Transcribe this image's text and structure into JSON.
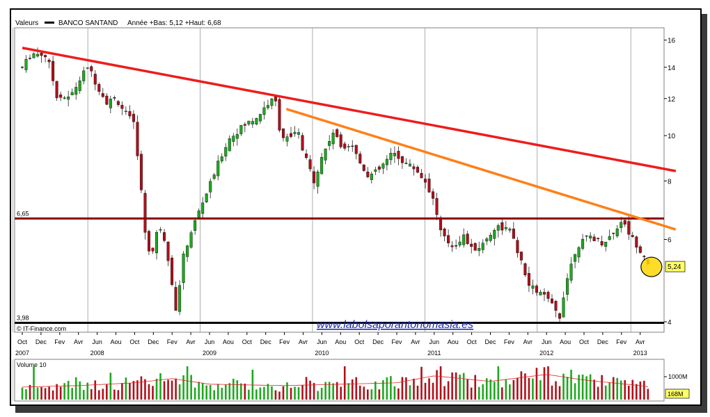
{
  "header": {
    "series_label": "Valeurs",
    "ticker": "BANCO SANTAND",
    "stats": "Année +Bas: 5,12 +Haut: 6,68"
  },
  "credit": "© IT-Finance.com",
  "watermark": "www.labolsaporantonomasia.es",
  "volume_panel": {
    "label": "Volume 10",
    "tick": "1000M",
    "last_value": "168M"
  },
  "colors": {
    "up": "#1fa81f",
    "down": "#b0101a",
    "red_trend": "#ee1c1c",
    "orange_trend": "#ff7f17",
    "resistance": "#8b0000",
    "support": "#000000",
    "highlight": "#ffd700"
  },
  "chart_data": {
    "type": "candlestick",
    "y_scale": "log",
    "ylim": [
      3.8,
      17
    ],
    "y_ticks": [
      4,
      6,
      8,
      10,
      12,
      14,
      16
    ],
    "x_ticks": [
      "Oct",
      "Dec",
      "Fev",
      "Avr",
      "Jun",
      "Aou",
      "Oct",
      "Dec",
      "Fev",
      "Avr",
      "Jun",
      "Aou",
      "Oct",
      "Dec",
      "Fev",
      "Avr",
      "Jun",
      "Aou",
      "Oct",
      "Dec",
      "Fev",
      "Avr",
      "Jun",
      "Aou",
      "Oct",
      "Dec",
      "Fev",
      "Avr",
      "Jun",
      "Aou",
      "Oct",
      "Dec",
      "Fev",
      "Avr"
    ],
    "years": [
      {
        "label": "2007",
        "tick_index": 0
      },
      {
        "label": "2008",
        "tick_index": 4
      },
      {
        "label": "2009",
        "tick_index": 10
      },
      {
        "label": "2010",
        "tick_index": 16
      },
      {
        "label": "2011",
        "tick_index": 22
      },
      {
        "label": "2012",
        "tick_index": 28
      },
      {
        "label": "2013",
        "tick_index": 33
      }
    ],
    "levels": [
      {
        "name": "resistance",
        "value": 6.65,
        "label": "6,65"
      },
      {
        "name": "support",
        "value": 3.98,
        "label": "3,98"
      }
    ],
    "trendlines": [
      {
        "name": "red",
        "from": {
          "t": 0,
          "y": 15.4
        },
        "to": {
          "t": 34.9,
          "y": 8.4
        }
      },
      {
        "name": "orange",
        "from": {
          "t": 14.1,
          "y": 11.4
        },
        "to": {
          "t": 34.9,
          "y": 6.3
        }
      }
    ],
    "last_price": {
      "value": 5.24,
      "label": "5,24"
    },
    "price_path": [
      [
        0,
        14.0
      ],
      [
        0.5,
        15.0
      ],
      [
        1.2,
        14.9
      ],
      [
        1.5,
        14.0
      ],
      [
        1.8,
        12.2
      ],
      [
        2.5,
        12.0
      ],
      [
        3,
        13.0
      ],
      [
        3.5,
        14.1
      ],
      [
        4,
        12.8
      ],
      [
        4.5,
        11.8
      ],
      [
        5,
        12.0
      ],
      [
        5.5,
        11.2
      ],
      [
        6,
        10.5
      ],
      [
        6.3,
        8.0
      ],
      [
        6.6,
        6.0
      ],
      [
        6.9,
        5.5
      ],
      [
        7.3,
        6.5
      ],
      [
        7.6,
        6.0
      ],
      [
        7.9,
        5.2
      ],
      [
        8.2,
        4.2
      ],
      [
        8.6,
        5.5
      ],
      [
        9,
        6.2
      ],
      [
        9.5,
        7.0
      ],
      [
        10,
        7.8
      ],
      [
        10.5,
        8.8
      ],
      [
        11,
        9.8
      ],
      [
        11.8,
        10.5
      ],
      [
        12.6,
        11.0
      ],
      [
        13,
        11.6
      ],
      [
        13.5,
        12.0
      ],
      [
        13.8,
        10.0
      ],
      [
        14.3,
        9.8
      ],
      [
        14.7,
        10.3
      ],
      [
        15,
        9.2
      ],
      [
        15.6,
        8.0
      ],
      [
        16,
        9.0
      ],
      [
        16.6,
        10.2
      ],
      [
        17,
        9.5
      ],
      [
        17.6,
        9.6
      ],
      [
        18,
        8.8
      ],
      [
        18.5,
        8.2
      ],
      [
        19,
        8.4
      ],
      [
        19.8,
        9.2
      ],
      [
        20.5,
        8.7
      ],
      [
        21,
        8.5
      ],
      [
        21.6,
        7.9
      ],
      [
        22,
        7.2
      ],
      [
        22.4,
        6.1
      ],
      [
        23,
        5.8
      ],
      [
        23.6,
        6.1
      ],
      [
        24,
        5.7
      ],
      [
        24.5,
        5.8
      ],
      [
        25.3,
        6.4
      ],
      [
        26,
        6.3
      ],
      [
        26.5,
        5.6
      ],
      [
        27,
        4.8
      ],
      [
        28,
        4.5
      ],
      [
        28.7,
        4.1
      ],
      [
        29,
        4.8
      ],
      [
        29.6,
        5.8
      ],
      [
        30.3,
        6.1
      ],
      [
        31,
        5.9
      ],
      [
        31.6,
        6.2
      ],
      [
        32,
        6.6
      ],
      [
        32.5,
        6.1
      ],
      [
        33,
        5.7
      ],
      [
        33.6,
        5.24
      ]
    ],
    "volume_path": [
      [
        0,
        1.8
      ],
      [
        3,
        2.0
      ],
      [
        6,
        2.4
      ],
      [
        8,
        3.0
      ],
      [
        10,
        2.2
      ],
      [
        14,
        2.0
      ],
      [
        17,
        2.2
      ],
      [
        20,
        2.4
      ],
      [
        22,
        3.4
      ],
      [
        25,
        2.6
      ],
      [
        28,
        3.6
      ],
      [
        30,
        2.8
      ],
      [
        33,
        2.0
      ],
      [
        34,
        1.6
      ]
    ],
    "volume_max": 5
  }
}
